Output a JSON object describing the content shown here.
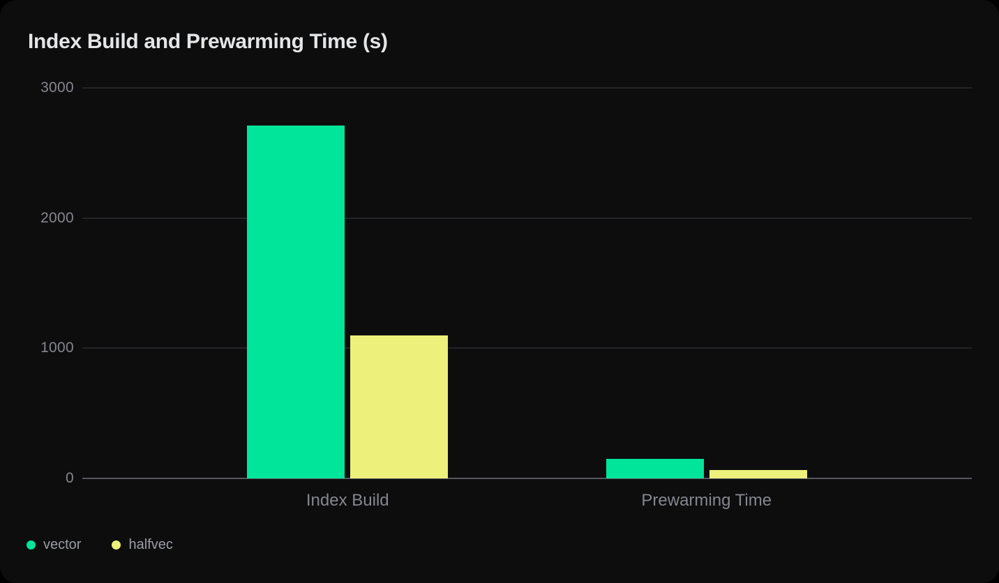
{
  "chart_data": {
    "type": "bar",
    "title": "Index Build and Prewarming Time (s)",
    "categories": [
      "Index Build",
      "Prewarming Time"
    ],
    "series": [
      {
        "name": "vector",
        "color": "#00e599",
        "values": [
          2710,
          150
        ]
      },
      {
        "name": "halfvec",
        "color": "#edf07a",
        "values": [
          1100,
          65
        ]
      }
    ],
    "ylim": [
      0,
      3000
    ],
    "y_ticks": [
      0,
      1000,
      2000,
      3000
    ],
    "xlabel": "",
    "ylabel": "",
    "grid": "horizontal-only",
    "legend_position": "bottom-left",
    "colors": {
      "outer_background": "#000000",
      "card_background": "#0d0d0e",
      "grid_line": "#242428",
      "axis_line": "#55585d",
      "title_text": "#e4e5e7",
      "tick_text": "#85878d",
      "legend_text": "#9b9ea4"
    }
  }
}
